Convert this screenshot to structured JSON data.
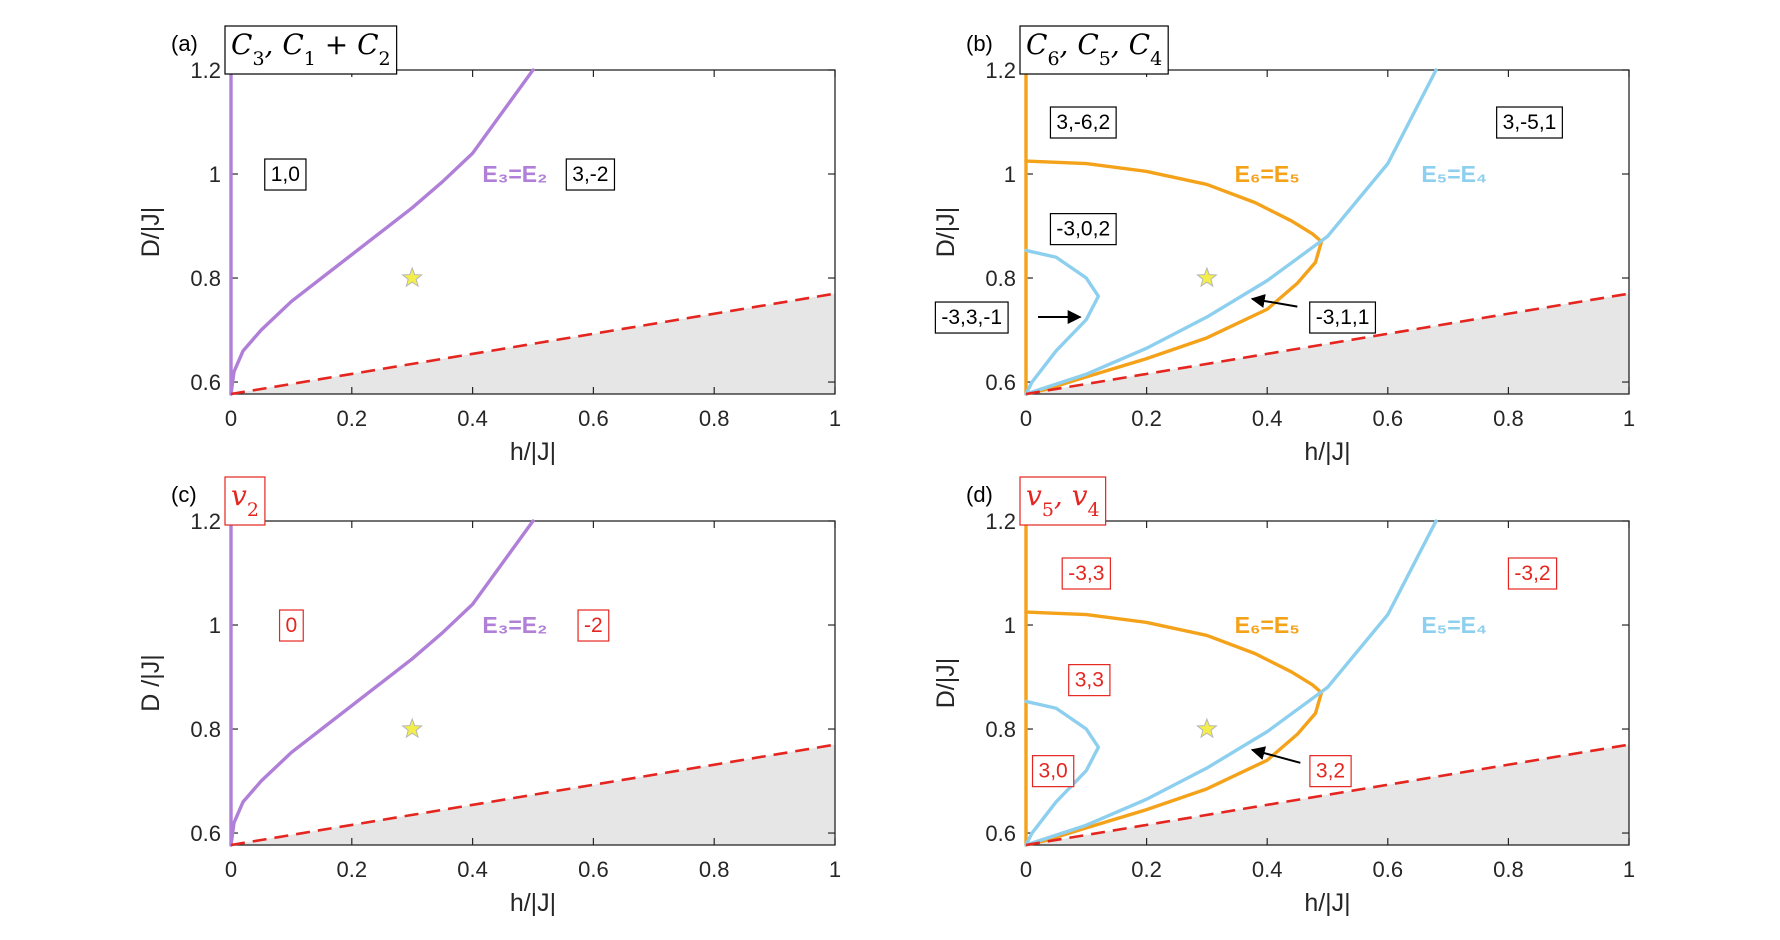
{
  "colors": {
    "purple": "#b07fd8",
    "orange": "#f5a21b",
    "cyan": "#8dcfee",
    "red": "#e52620",
    "shade": "#e6e6e6",
    "star": "#f3ee4a"
  },
  "chart_data": [
    {
      "type": "line",
      "panel_label": "(a)",
      "title": "C_3, C_1 + C_2",
      "title_color": "black",
      "xlabel": "h/|J|",
      "ylabel": "D/|J|",
      "xlim": [
        0,
        1
      ],
      "ylim": [
        0.577,
        1.2
      ],
      "xticks": [
        "0",
        "0.2",
        "0.4",
        "0.6",
        "0.8",
        "1"
      ],
      "yticks": [
        "0.6",
        "0.8",
        "1",
        "1.2"
      ],
      "series": [
        {
          "label": "E₃=E₂",
          "color": "purple",
          "x": [
            0,
            0.005,
            0.02,
            0.05,
            0.1,
            0.15,
            0.2,
            0.25,
            0.3,
            0.35,
            0.4,
            0.45,
            0.5
          ],
          "y": [
            0.577,
            0.62,
            0.66,
            0.7,
            0.755,
            0.8,
            0.845,
            0.89,
            0.935,
            0.985,
            1.04,
            1.12,
            1.2
          ]
        },
        {
          "label": "",
          "color": "purple",
          "x": [
            0,
            0
          ],
          "y": [
            0.577,
            1.2
          ]
        }
      ],
      "boundary": {
        "color": "red",
        "x": [
          0,
          1
        ],
        "y": [
          0.577,
          0.77
        ]
      },
      "star": {
        "x": 0.3,
        "y": 0.8
      },
      "annotations": [
        {
          "text": "1,0",
          "x": 0.09,
          "y": 1.0,
          "color": "black"
        },
        {
          "text": "3,-2",
          "x": 0.595,
          "y": 1.0,
          "color": "black"
        },
        {
          "text": "E₃=E₂",
          "x": 0.47,
          "y": 1.0,
          "color": "purple",
          "kind": "curve"
        }
      ]
    },
    {
      "type": "line",
      "panel_label": "(b)",
      "title": "C_6, C_5, C_4",
      "title_color": "black",
      "xlabel": "h/|J|",
      "ylabel": "D/|J|",
      "xlim": [
        0,
        1
      ],
      "ylim": [
        0.577,
        1.2
      ],
      "xticks": [
        "0",
        "0.2",
        "0.4",
        "0.6",
        "0.8",
        "1"
      ],
      "yticks": [
        "0.6",
        "0.8",
        "1",
        "1.2"
      ],
      "series": [
        {
          "label": "E₆=E₅",
          "color": "orange",
          "x": [
            0,
            0.1,
            0.2,
            0.3,
            0.38,
            0.44,
            0.475,
            0.49,
            0.48,
            0.45,
            0.4,
            0.3,
            0.2,
            0.1,
            0.03,
            0
          ],
          "y": [
            1.025,
            1.02,
            1.005,
            0.98,
            0.945,
            0.91,
            0.885,
            0.87,
            0.83,
            0.79,
            0.74,
            0.685,
            0.645,
            0.61,
            0.585,
            0.577
          ]
        },
        {
          "label": "",
          "color": "orange",
          "x": [
            0,
            0
          ],
          "y": [
            0.577,
            1.2
          ]
        },
        {
          "label": "E₅=E₄",
          "color": "cyan",
          "x": [
            0,
            0.1,
            0.2,
            0.3,
            0.4,
            0.5,
            0.6,
            0.68
          ],
          "y": [
            0.577,
            0.615,
            0.665,
            0.725,
            0.795,
            0.88,
            1.02,
            1.2
          ]
        },
        {
          "label": "",
          "color": "cyan",
          "x": [
            0,
            0.05,
            0.1,
            0.12,
            0.1,
            0.05,
            0.01,
            0
          ],
          "y": [
            0.853,
            0.84,
            0.8,
            0.765,
            0.72,
            0.66,
            0.6,
            0.577
          ]
        }
      ],
      "boundary": {
        "color": "red",
        "x": [
          0,
          1
        ],
        "y": [
          0.577,
          0.77
        ]
      },
      "star": {
        "x": 0.3,
        "y": 0.8
      },
      "annotations": [
        {
          "text": "3,-6,2",
          "x": 0.095,
          "y": 1.1,
          "color": "black"
        },
        {
          "text": "3,-5,1",
          "x": 0.835,
          "y": 1.1,
          "color": "black"
        },
        {
          "text": "-3,0,2",
          "x": 0.095,
          "y": 0.895,
          "color": "black"
        },
        {
          "text": "-3,3,-1",
          "x": -0.09,
          "y": 0.725,
          "color": "black"
        },
        {
          "text": "-3,1,1",
          "x": 0.525,
          "y": 0.725,
          "color": "black"
        },
        {
          "text": "E₆=E₅",
          "x": 0.4,
          "y": 1.0,
          "color": "orange",
          "kind": "curve"
        },
        {
          "text": "E₅=E₄",
          "x": 0.71,
          "y": 1.0,
          "color": "cyan",
          "kind": "curve"
        }
      ],
      "arrows": [
        {
          "from": [
            0.02,
            0.725
          ],
          "to": [
            0.09,
            0.725
          ]
        },
        {
          "from": [
            0.45,
            0.745
          ],
          "to": [
            0.375,
            0.76
          ]
        }
      ]
    },
    {
      "type": "line",
      "panel_label": "(c)",
      "title": "v_2",
      "title_color": "red",
      "xlabel": "h/|J|",
      "ylabel": "D /|J|",
      "xlim": [
        0,
        1
      ],
      "ylim": [
        0.577,
        1.2
      ],
      "xticks": [
        "0",
        "0.2",
        "0.4",
        "0.6",
        "0.8",
        "1"
      ],
      "yticks": [
        "0.6",
        "0.8",
        "1",
        "1.2"
      ],
      "series": [
        {
          "label": "E₃=E₂",
          "color": "purple",
          "x": [
            0,
            0.005,
            0.02,
            0.05,
            0.1,
            0.15,
            0.2,
            0.25,
            0.3,
            0.35,
            0.4,
            0.45,
            0.5
          ],
          "y": [
            0.577,
            0.62,
            0.66,
            0.7,
            0.755,
            0.8,
            0.845,
            0.89,
            0.935,
            0.985,
            1.04,
            1.12,
            1.2
          ]
        },
        {
          "label": "",
          "color": "purple",
          "x": [
            0,
            0
          ],
          "y": [
            0.577,
            1.2
          ]
        }
      ],
      "boundary": {
        "color": "red",
        "x": [
          0,
          1
        ],
        "y": [
          0.577,
          0.77
        ]
      },
      "star": {
        "x": 0.3,
        "y": 0.8
      },
      "annotations": [
        {
          "text": "0",
          "x": 0.1,
          "y": 1.0,
          "color": "red"
        },
        {
          "text": "-2",
          "x": 0.6,
          "y": 1.0,
          "color": "red"
        },
        {
          "text": "E₃=E₂",
          "x": 0.47,
          "y": 1.0,
          "color": "purple",
          "kind": "curve"
        }
      ]
    },
    {
      "type": "line",
      "panel_label": "(d)",
      "title": "v_5, v_4",
      "title_color": "red",
      "xlabel": "h/|J|",
      "ylabel": "D/|J|",
      "xlim": [
        0,
        1
      ],
      "ylim": [
        0.577,
        1.2
      ],
      "xticks": [
        "0",
        "0.2",
        "0.4",
        "0.6",
        "0.8",
        "1"
      ],
      "yticks": [
        "0.6",
        "0.8",
        "1",
        "1.2"
      ],
      "series": [
        {
          "label": "E₆=E₅",
          "color": "orange",
          "x": [
            0,
            0.1,
            0.2,
            0.3,
            0.38,
            0.44,
            0.475,
            0.49,
            0.48,
            0.45,
            0.4,
            0.3,
            0.2,
            0.1,
            0.03,
            0
          ],
          "y": [
            1.025,
            1.02,
            1.005,
            0.98,
            0.945,
            0.91,
            0.885,
            0.87,
            0.83,
            0.79,
            0.74,
            0.685,
            0.645,
            0.61,
            0.585,
            0.577
          ]
        },
        {
          "label": "",
          "color": "orange",
          "x": [
            0,
            0
          ],
          "y": [
            0.577,
            1.2
          ]
        },
        {
          "label": "E₅=E₄",
          "color": "cyan",
          "x": [
            0,
            0.1,
            0.2,
            0.3,
            0.4,
            0.5,
            0.6,
            0.68
          ],
          "y": [
            0.577,
            0.615,
            0.665,
            0.725,
            0.795,
            0.88,
            1.02,
            1.2
          ]
        },
        {
          "label": "",
          "color": "cyan",
          "x": [
            0,
            0.05,
            0.1,
            0.12,
            0.1,
            0.05,
            0.01,
            0
          ],
          "y": [
            0.853,
            0.84,
            0.8,
            0.765,
            0.72,
            0.66,
            0.6,
            0.577
          ]
        }
      ],
      "boundary": {
        "color": "red",
        "x": [
          0,
          1
        ],
        "y": [
          0.577,
          0.77
        ]
      },
      "star": {
        "x": 0.3,
        "y": 0.8
      },
      "annotations": [
        {
          "text": "-3,3",
          "x": 0.1,
          "y": 1.1,
          "color": "red"
        },
        {
          "text": "-3,2",
          "x": 0.84,
          "y": 1.1,
          "color": "red"
        },
        {
          "text": "3,3",
          "x": 0.105,
          "y": 0.895,
          "color": "red"
        },
        {
          "text": "3,0",
          "x": 0.045,
          "y": 0.72,
          "color": "red"
        },
        {
          "text": "3,2",
          "x": 0.505,
          "y": 0.72,
          "color": "red"
        },
        {
          "text": "E₆=E₅",
          "x": 0.4,
          "y": 1.0,
          "color": "orange",
          "kind": "curve"
        },
        {
          "text": "E₅=E₄",
          "x": 0.71,
          "y": 1.0,
          "color": "cyan",
          "kind": "curve"
        }
      ],
      "arrows": [
        {
          "from": [
            0.455,
            0.735
          ],
          "to": [
            0.375,
            0.76
          ]
        }
      ]
    }
  ]
}
